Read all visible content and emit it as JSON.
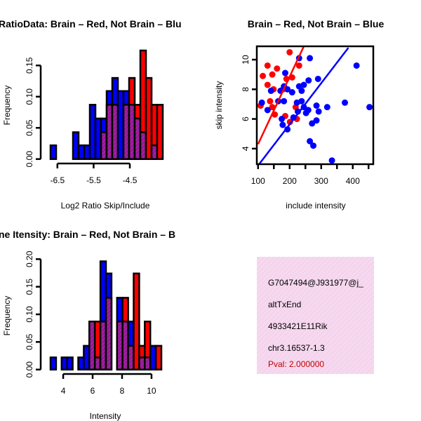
{
  "colors": {
    "blue": "#0000ff",
    "red": "#ff0000",
    "purple": "#a020a0",
    "pink": "#f8d8f0",
    "pval": "#c00000"
  },
  "chart_data": [
    {
      "type": "bar",
      "title": "RatioData: Brain – Red, Not Brain – Blu",
      "xlabel": "Log2 Ratio Skip/Include",
      "ylabel": "Frequency",
      "xlim": [
        -6.69,
        -3.59
      ],
      "ylim": [
        0,
        0.15
      ],
      "xticks": [
        "-6.5",
        "-5.5",
        "-4.5"
      ],
      "xtick_values": [
        -6.5,
        -5.5,
        -4.5
      ],
      "yticks": [
        "0.00",
        "0.05",
        "0.10",
        "0.15"
      ],
      "ytick_values": [
        0,
        0.05,
        0.1,
        0.15
      ],
      "bin_start": -6.69,
      "bin_width": 0.155,
      "series": [
        {
          "name": "Not Brain",
          "color": "blue",
          "values": [
            0.022,
            0,
            0,
            0,
            0.043,
            0.022,
            0.022,
            0.087,
            0.065,
            0.065,
            0.109,
            0.13,
            0.109,
            0.109,
            0.087,
            0.065,
            0.043,
            0,
            0.022,
            0
          ]
        },
        {
          "name": "Brain",
          "color": "red",
          "values": [
            0,
            0,
            0,
            0,
            0,
            0,
            0,
            0,
            0,
            0.043,
            0.087,
            0.087,
            0,
            0.087,
            0.13,
            0.087,
            0.174,
            0.13,
            0.087,
            0.087
          ]
        }
      ]
    },
    {
      "type": "scatter",
      "title": "Brain – Red, Not Brain – Blue",
      "xlabel": "include intensity",
      "ylabel": "skip intensity",
      "xlim": [
        96,
        465
      ],
      "ylim": [
        2.95,
        10.9
      ],
      "xticks": [
        "100",
        "200",
        "300",
        "400"
      ],
      "xtick_values": [
        100,
        200,
        300,
        400
      ],
      "yticks": [
        "4",
        "6",
        "8",
        "10"
      ],
      "ytick_values": [
        4,
        6,
        8,
        10
      ],
      "series": [
        {
          "name": "Brain",
          "color": "red",
          "points": [
            [
              200,
              10.5
            ],
            [
              130,
              9.6
            ],
            [
              115,
              8.9
            ],
            [
              145,
              9.0
            ],
            [
              160,
              9.4
            ],
            [
              130,
              8.3
            ],
            [
              149,
              8.0
            ],
            [
              190,
              8.7
            ],
            [
              208,
              8.8
            ],
            [
              230,
              9.6
            ],
            [
              138,
              7.2
            ],
            [
              108,
              6.9
            ],
            [
              153,
              6.3
            ],
            [
              186,
              6.2
            ],
            [
              201,
              5.8
            ],
            [
              223,
              6.0
            ],
            [
              219,
              6.8
            ],
            [
              145,
              6.8
            ],
            [
              179,
              8.0
            ]
          ],
          "fit_line": [
            [
              100,
              4.3
            ],
            [
              245,
              10.9
            ]
          ]
        },
        {
          "name": "Not Brain",
          "color": "blue",
          "points": [
            [
              264,
              10.1
            ],
            [
              230,
              10.1
            ],
            [
              412,
              9.6
            ],
            [
              290,
              8.7
            ],
            [
              186,
              9.1
            ],
            [
              260,
              8.6
            ],
            [
              245,
              8.3
            ],
            [
              230,
              8.2
            ],
            [
              238,
              7.9
            ],
            [
              208,
              7.8
            ],
            [
              193,
              8.0
            ],
            [
              171,
              7.9
            ],
            [
              141,
              7.9
            ],
            [
              182,
              8.2
            ],
            [
              112,
              7.1
            ],
            [
              130,
              6.6
            ],
            [
              164,
              7.2
            ],
            [
              182,
              7.2
            ],
            [
              223,
              7.1
            ],
            [
              238,
              7.2
            ],
            [
              245,
              6.8
            ],
            [
              226,
              6.5
            ],
            [
              252,
              6.4
            ],
            [
              259,
              6.6
            ],
            [
              285,
              6.9
            ],
            [
              292,
              6.5
            ],
            [
              319,
              6.8
            ],
            [
              375,
              7.1
            ],
            [
              453,
              6.8
            ],
            [
              175,
              6.0
            ],
            [
              178,
              5.6
            ],
            [
              193,
              5.3
            ],
            [
              212,
              6.1
            ],
            [
              271,
              5.7
            ],
            [
              285,
              5.9
            ],
            [
              264,
              4.5
            ],
            [
              275,
              4.2
            ],
            [
              334,
              3.2
            ]
          ],
          "fit_line": [
            [
              104,
              2.97
            ],
            [
              386,
              10.8
            ]
          ]
        }
      ]
    },
    {
      "type": "bar",
      "title": "ne Itensity: Brain – Red, Not Brain – B",
      "xlabel": "Intensity",
      "ylabel": "Frequency",
      "xlim": [
        3.14,
        10.67
      ],
      "ylim": [
        0,
        0.2
      ],
      "xticks": [
        "4",
        "6",
        "8",
        "10"
      ],
      "xtick_values": [
        4,
        6,
        8,
        10
      ],
      "yticks": [
        "0.00",
        "0.05",
        "0.10",
        "0.15",
        "0.20"
      ],
      "ytick_values": [
        0,
        0.05,
        0.1,
        0.15,
        0.2
      ],
      "bin_start": 3.14,
      "bin_width": 0.3765,
      "series": [
        {
          "name": "Not Brain",
          "color": "blue",
          "values": [
            0.022,
            0,
            0.022,
            0.022,
            0,
            0.022,
            0.043,
            0.087,
            0.022,
            0.196,
            0.174,
            0,
            0.13,
            0.087,
            0.087,
            0,
            0.022,
            0.022,
            0.043,
            0
          ]
        },
        {
          "name": "Brain",
          "color": "red",
          "values": [
            0,
            0,
            0,
            0,
            0,
            0,
            0,
            0.087,
            0.087,
            0.087,
            0.13,
            0,
            0.087,
            0.13,
            0.043,
            0.174,
            0.043,
            0.087,
            0,
            0.043
          ]
        }
      ]
    }
  ],
  "info_box": {
    "lines": [
      "G7047494@J931977@j_",
      "altTxEnd",
      "4933421E11Rik",
      "chr3.16537-1.3"
    ],
    "pval": "Pval: 2.000000"
  }
}
